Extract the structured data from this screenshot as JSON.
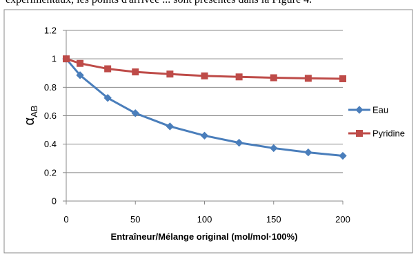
{
  "header_text": "expérimentaux, les points d'arrivée ... sont présentés dans la Figure 4.",
  "chart_data": {
    "type": "line",
    "xlabel": "Entraîneur/Mélange original (mol/mol·100%)",
    "ylabel": "α",
    "ylabel_sub": "AB",
    "xlim": [
      0,
      200
    ],
    "ylim": [
      0,
      1.2
    ],
    "x_ticks": [
      "0",
      "50",
      "100",
      "150",
      "200"
    ],
    "y_ticks": [
      "0",
      "0.2",
      "0.4",
      "0.6",
      "0.8",
      "1",
      "1.2"
    ],
    "grid": "horizontal",
    "legend_position": "right",
    "series": [
      {
        "name": "Eau",
        "color": "#4a7ebb",
        "marker": "diamond",
        "x": [
          0,
          10,
          30,
          50,
          75,
          100,
          125,
          150,
          175,
          200
        ],
        "y": [
          1.0,
          0.885,
          0.725,
          0.618,
          0.525,
          0.46,
          0.41,
          0.372,
          0.342,
          0.318
        ]
      },
      {
        "name": "Pyridine",
        "color": "#be4b48",
        "marker": "square",
        "x": [
          0,
          10,
          30,
          50,
          75,
          100,
          125,
          150,
          175,
          200
        ],
        "y": [
          1.0,
          0.968,
          0.93,
          0.908,
          0.893,
          0.88,
          0.873,
          0.867,
          0.863,
          0.86
        ]
      }
    ]
  }
}
